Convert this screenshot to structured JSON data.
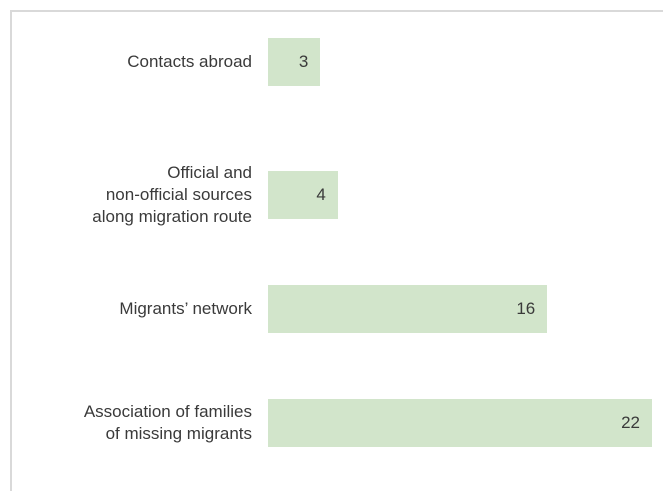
{
  "chart_data": {
    "type": "bar",
    "orientation": "horizontal",
    "categories": [
      "Contacts abroad",
      "Official and\nnon-official sources\nalong migration route",
      "Migrants’ network",
      "Association of families\nof missing migrants"
    ],
    "values": [
      3,
      4,
      16,
      22
    ],
    "color": "#d2e5cb"
  }
}
